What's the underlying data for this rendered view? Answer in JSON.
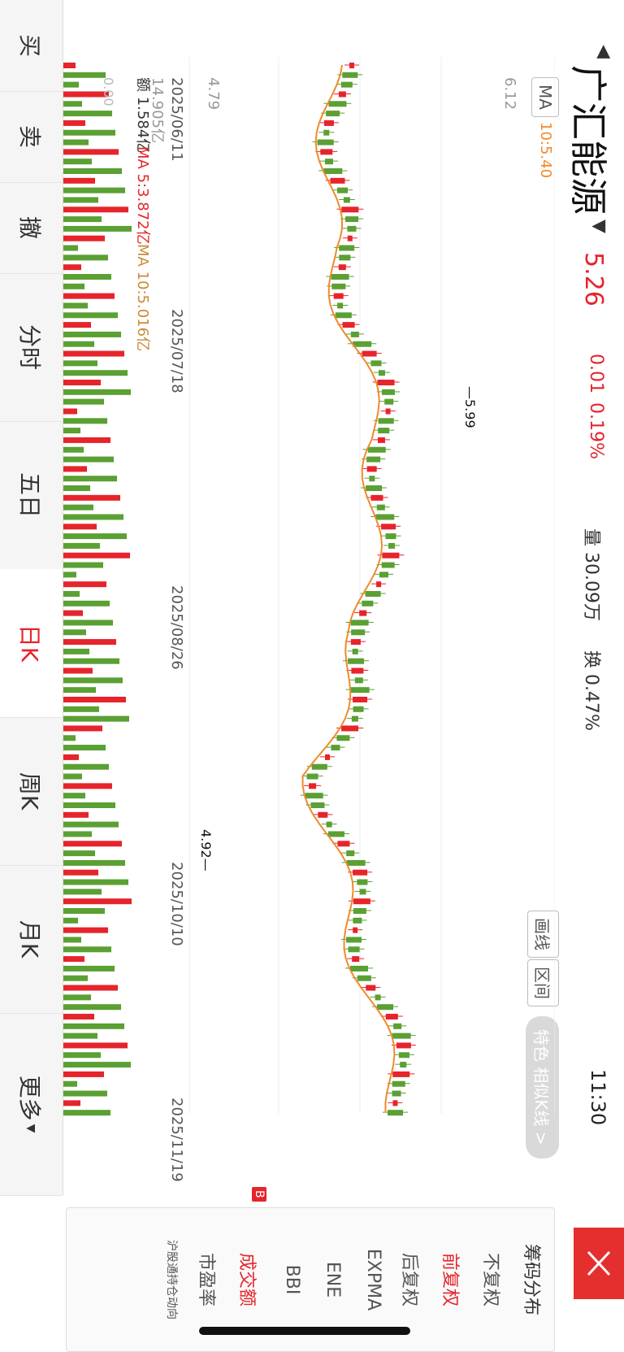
{
  "header": {
    "title": "广汇能源",
    "price": "5.26",
    "change": "0.01",
    "change_pct": "0.19%",
    "volume": "量 30.09万",
    "turnover": "换 0.47%",
    "time": "11:30"
  },
  "chart_controls": {
    "ma_label": "MA",
    "ma_value": "10:5.40",
    "draw_line": "画线",
    "interval": "区间",
    "feature": "特色 相似K线 >"
  },
  "axis": {
    "ymax_label": "6.12",
    "ymin_label": "4.79",
    "volume_label": "14.905亿",
    "volume_zero": "0.00",
    "volume_info": "额 1.584亿",
    "ma5": "MA 5:3.872亿",
    "ma10": "MA 10:5.016亿",
    "dates": [
      "2025/06/11",
      "2025/07/18",
      "2025/08/26",
      "2025/10/10",
      "2025/11/19"
    ],
    "high_mark": "5.99",
    "low_mark": "4.92",
    "buy_marker": "B"
  },
  "side_panel": {
    "items": [
      "筹码分布",
      "不复权",
      "前复权",
      "后复权",
      "EXPMA",
      "ENE",
      "BBI",
      "成交额",
      "市盈率",
      "沪股通持仓动向"
    ],
    "active": "前复权",
    "active2": "成交额"
  },
  "bottom_nav": {
    "items": [
      "买",
      "卖",
      "撤",
      "分时",
      "五日",
      "日K",
      "周K",
      "月K",
      "更多"
    ],
    "active": "日K"
  },
  "colors": {
    "up": "#e6242b",
    "down": "#5aa033",
    "ma": "#f08a2c"
  }
}
